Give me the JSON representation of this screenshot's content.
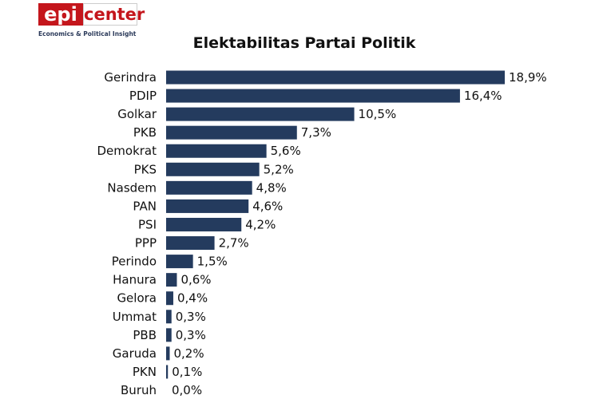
{
  "logo": {
    "left": "epi",
    "right": "center",
    "tagline": "Economics & Political Insight"
  },
  "chart_data": {
    "type": "bar",
    "orientation": "horizontal",
    "title": "Elektabilitas Partai Politik",
    "categories": [
      "Gerindra",
      "PDIP",
      "Golkar",
      "PKB",
      "Demokrat",
      "PKS",
      "Nasdem",
      "PAN",
      "PSI",
      "PPP",
      "Perindo",
      "Hanura",
      "Gelora",
      "Ummat",
      "PBB",
      "Garuda",
      "PKN",
      "Buruh"
    ],
    "values": [
      18.9,
      16.4,
      10.5,
      7.3,
      5.6,
      5.2,
      4.8,
      4.6,
      4.2,
      2.7,
      1.5,
      0.6,
      0.4,
      0.3,
      0.3,
      0.2,
      0.1,
      0.0
    ],
    "data_labels": [
      "18,9%",
      "16,4%",
      "10,5%",
      "7,3%",
      "5,6%",
      "5,2%",
      "4,8%",
      "4,6%",
      "4,2%",
      "2,7%",
      "1,5%",
      "0,6%",
      "0,4%",
      "0,3%",
      "0,3%",
      "0,2%",
      "0,1%",
      "0,0%"
    ],
    "xlim": [
      0,
      18.9
    ],
    "grid": false,
    "bar_color": "#243b5e"
  }
}
